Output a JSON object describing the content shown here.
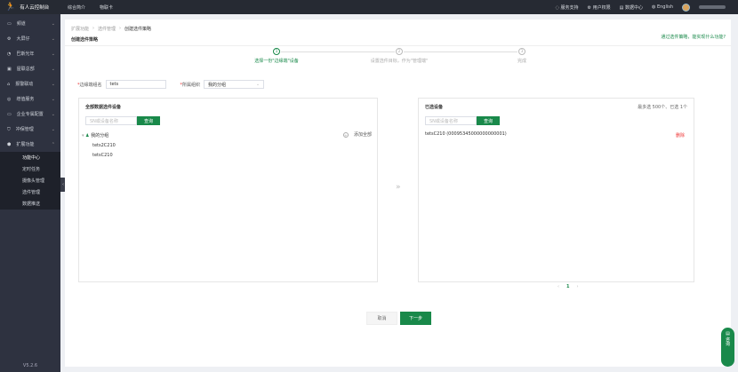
{
  "topbar": {
    "app_title": "有人云控制台",
    "nav": [
      "综合简介",
      "物联卡"
    ],
    "right": [
      "服务支持",
      "用户权限",
      "数据中心",
      "English"
    ]
  },
  "sidebar": {
    "items": [
      "频道",
      "大屏仔",
      "巴斯光年",
      "屋联总部",
      "报警联动",
      "增值服务",
      "企业专属配置",
      "冲保管理",
      "扩展功能"
    ],
    "sub_items": [
      "功能中心",
      "定时任务",
      "摄像头管理",
      "选件管理",
      "数据推送"
    ],
    "version": "V5.2.6"
  },
  "breadcrumb": [
    "扩展功能",
    "选件管理",
    "创建选件策略"
  ],
  "page_title": "创建选件策略",
  "help_link": "通过选件策略，能实现什么功能?",
  "steps": [
    {
      "num": "1",
      "label": "选择一份\"边缘端\"设备",
      "active": true
    },
    {
      "num": "2",
      "label": "设置选件目标，作为\"管理端\"",
      "active": false
    },
    {
      "num": "3",
      "label": "完成",
      "active": false
    }
  ],
  "form": {
    "name_label": "边缘端组名",
    "name_value": "tets",
    "org_label": "所属组织",
    "org_value": "我的分组"
  },
  "left_panel": {
    "title": "全部数据选件设备",
    "search_placeholder": "SN或设备名称",
    "search_btn": "查询",
    "group": "我的分组",
    "add_all": "添加全部",
    "devices": [
      "tets2C210",
      "tetsC210"
    ]
  },
  "right_panel": {
    "title": "已选设备",
    "limit": "最多选 500个、已选 1个",
    "search_placeholder": "SN或设备名称",
    "search_btn": "查询",
    "selected": [
      {
        "name": "tetsC210  (00095345000000000001)",
        "action": "删除"
      }
    ]
  },
  "pagination": {
    "current": "1"
  },
  "buttons": {
    "cancel": "取消",
    "next": "下一步"
  },
  "consult": "咨询",
  "colors": {
    "accent": "#19894a",
    "sidebar": "#2e3240",
    "danger": "#e33"
  }
}
